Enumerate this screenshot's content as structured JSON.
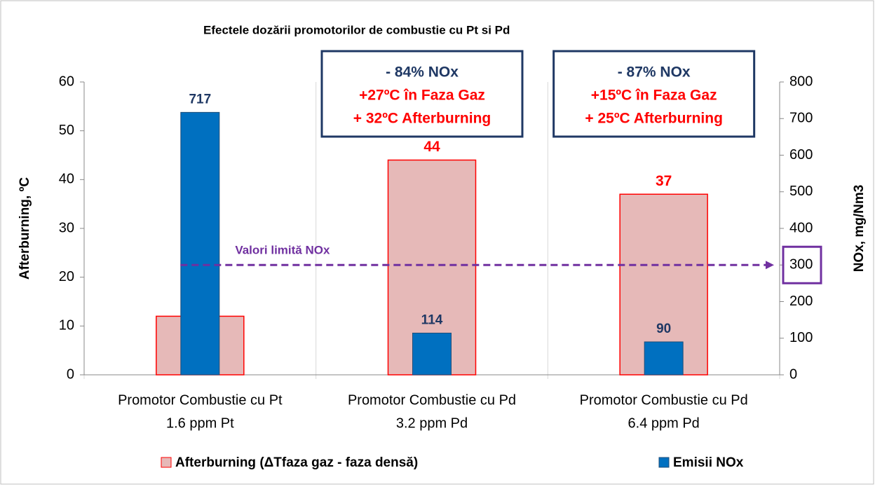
{
  "chart_data": {
    "type": "bar",
    "title": "Efectele dozării promotorilor de combustie cu Pt si Pd",
    "categories": [
      [
        "Promotor Combustie cu Pt",
        "1.6 ppm Pt"
      ],
      [
        "Promotor Combustie cu Pd",
        "3.2 ppm Pd"
      ],
      [
        "Promotor Combustie cu Pd",
        "6.4 ppm Pd"
      ]
    ],
    "series": [
      {
        "name": "Afterburning (ΔTfaza gaz - faza densă)",
        "color": "#e6b9b8",
        "edge": "#ff0000",
        "label_color": "#ff0000",
        "values": [
          12,
          44,
          37
        ]
      },
      {
        "name": "Emisii NOx",
        "color": "#0070c0",
        "edge": "#1f4e79",
        "label_color": "#1f3864",
        "axis": "y2",
        "values": [
          717,
          114,
          90
        ]
      }
    ],
    "ylabel": "Afterburning, ºC",
    "y2label": "NOx, mg/Nm3",
    "ylim": [
      0,
      60
    ],
    "yticks": [
      0,
      10,
      20,
      30,
      40,
      50,
      60
    ],
    "y2lim": [
      0,
      800
    ],
    "y2ticks": [
      0,
      100,
      200,
      300,
      400,
      500,
      600,
      700,
      800
    ],
    "limit": {
      "label": "Valori limită NOx",
      "value": 300,
      "color": "#7030a0"
    },
    "annotations": [
      {
        "lines": [
          {
            "text": "- 84% NOx",
            "color": "#1f3864"
          },
          {
            "text": "+27ºC în Faza Gaz",
            "color": "#ff0000"
          },
          {
            "text": "+ 32ºC Afterburning",
            "color": "#ff0000"
          }
        ]
      },
      {
        "lines": [
          {
            "text": "- 87% NOx",
            "color": "#1f3864"
          },
          {
            "text": "+15ºC în Faza Gaz",
            "color": "#ff0000"
          },
          {
            "text": "+ 25ºC Afterburning",
            "color": "#ff0000"
          }
        ]
      }
    ],
    "legend": "bottom"
  }
}
